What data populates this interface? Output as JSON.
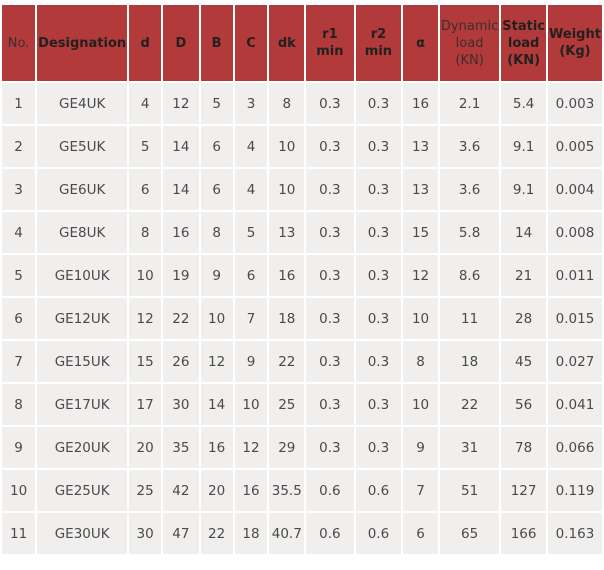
{
  "colors": {
    "header_bg": "#b23a3a",
    "cell_bg": "#f1efee",
    "cell_text": "#4a4a4a"
  },
  "chart_data": {
    "type": "table",
    "title": "",
    "columns": [
      {
        "label": "No.",
        "bold": false
      },
      {
        "label": "Designation",
        "bold": true
      },
      {
        "label": "d",
        "bold": true
      },
      {
        "label": "D",
        "bold": true
      },
      {
        "label": "B",
        "bold": true
      },
      {
        "label": "C",
        "bold": true
      },
      {
        "label": "dk",
        "bold": true
      },
      {
        "label": "r1 min",
        "bold": true
      },
      {
        "label": "r2 min",
        "bold": true
      },
      {
        "label": "α",
        "bold": true
      },
      {
        "label": "Dynamic load (KN)",
        "bold": false
      },
      {
        "label": "Static load (KN)",
        "bold": true
      },
      {
        "label": "Weight (Kg)",
        "bold": true
      }
    ],
    "rows": [
      [
        "1",
        "GE4UK",
        "4",
        "12",
        "5",
        "3",
        "8",
        "0.3",
        "0.3",
        "16",
        "2.1",
        "5.4",
        "0.003"
      ],
      [
        "2",
        "GE5UK",
        "5",
        "14",
        "6",
        "4",
        "10",
        "0.3",
        "0.3",
        "13",
        "3.6",
        "9.1",
        "0.005"
      ],
      [
        "3",
        "GE6UK",
        "6",
        "14",
        "6",
        "4",
        "10",
        "0.3",
        "0.3",
        "13",
        "3.6",
        "9.1",
        "0.004"
      ],
      [
        "4",
        "GE8UK",
        "8",
        "16",
        "8",
        "5",
        "13",
        "0.3",
        "0.3",
        "15",
        "5.8",
        "14",
        "0.008"
      ],
      [
        "5",
        "GE10UK",
        "10",
        "19",
        "9",
        "6",
        "16",
        "0.3",
        "0.3",
        "12",
        "8.6",
        "21",
        "0.011"
      ],
      [
        "6",
        "GE12UK",
        "12",
        "22",
        "10",
        "7",
        "18",
        "0.3",
        "0.3",
        "10",
        "11",
        "28",
        "0.015"
      ],
      [
        "7",
        "GE15UK",
        "15",
        "26",
        "12",
        "9",
        "22",
        "0.3",
        "0.3",
        "8",
        "18",
        "45",
        "0.027"
      ],
      [
        "8",
        "GE17UK",
        "17",
        "30",
        "14",
        "10",
        "25",
        "0.3",
        "0.3",
        "10",
        "22",
        "56",
        "0.041"
      ],
      [
        "9",
        "GE20UK",
        "20",
        "35",
        "16",
        "12",
        "29",
        "0.3",
        "0.3",
        "9",
        "31",
        "78",
        "0.066"
      ],
      [
        "10",
        "GE25UK",
        "25",
        "42",
        "20",
        "16",
        "35.5",
        "0.6",
        "0.6",
        "7",
        "51",
        "127",
        "0.119"
      ],
      [
        "11",
        "GE30UK",
        "30",
        "47",
        "22",
        "18",
        "40.7",
        "0.6",
        "0.6",
        "6",
        "65",
        "166",
        "0.163"
      ]
    ]
  }
}
